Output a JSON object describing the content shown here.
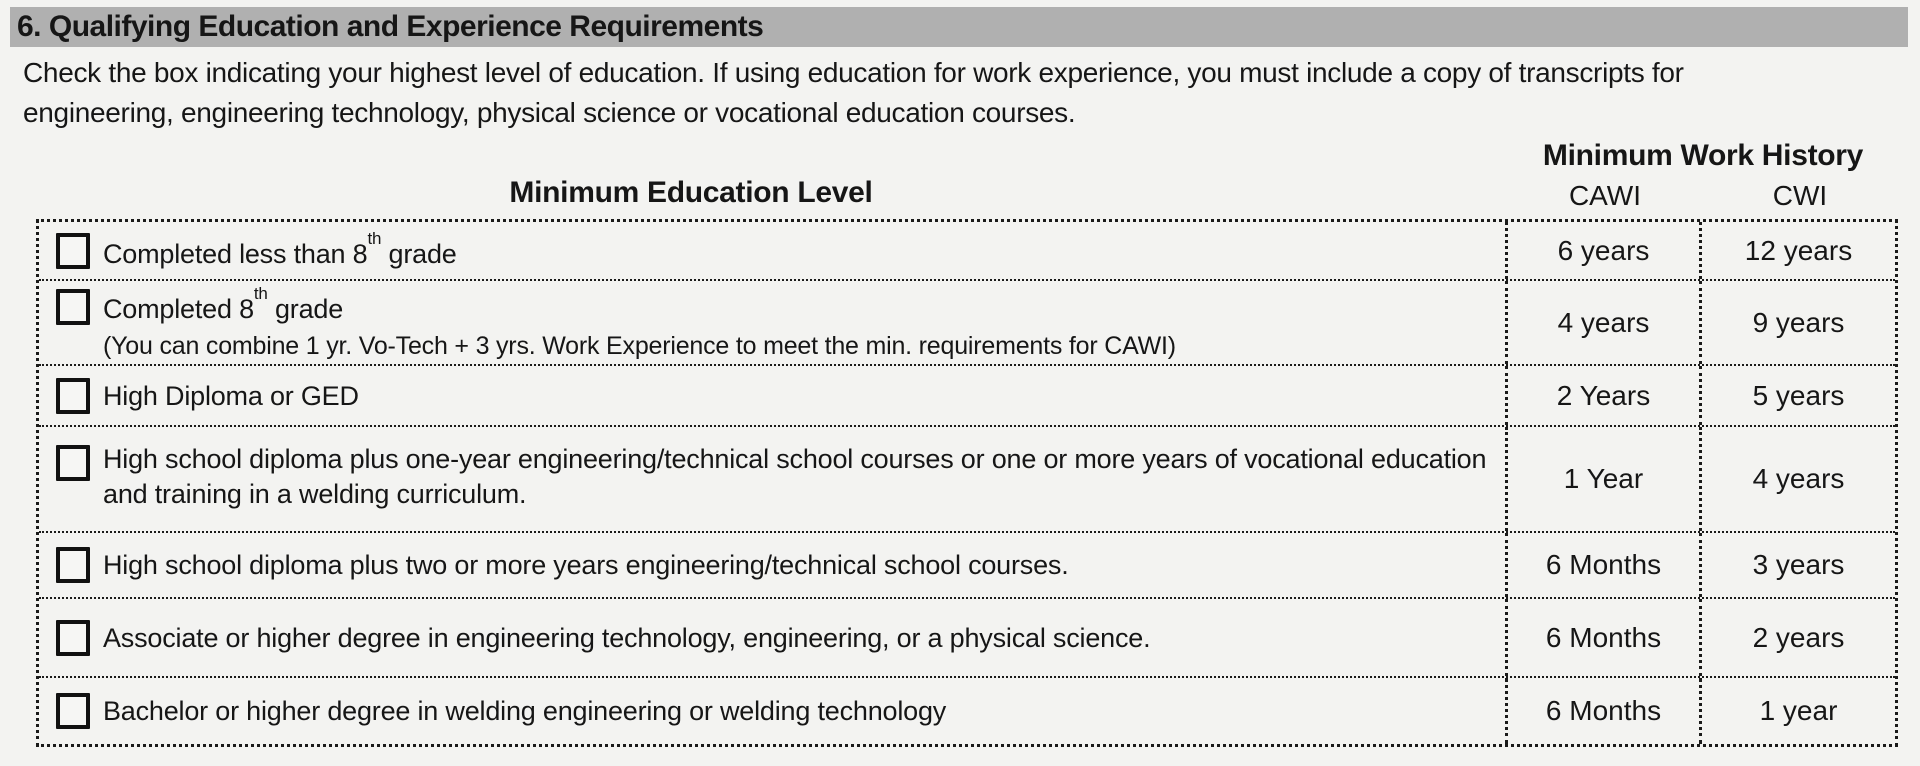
{
  "colors": {
    "page_bg": "#f3f3f1",
    "header_bar_bg": "#b0b0b0",
    "border": "#1a1a1a",
    "text": "#161616"
  },
  "section_header": {
    "title": "6. Qualifying Education and Experience Requirements"
  },
  "intro": {
    "lines": [
      "Check the box indicating your highest level of education. If using education for work experience, you must include a copy of transcripts for",
      "engineering, engineering technology, physical science or vocational education courses."
    ]
  },
  "table": {
    "work_history_header": "Minimum Work History",
    "education_header": "Minimum Education Level",
    "columns": {
      "cawi": "CAWI",
      "cwi": "CWI"
    },
    "rows": [
      {
        "label_pre": "Completed less than 8",
        "label_sup": "th",
        "label_post": " grade",
        "checked": false,
        "cawi": "6 years",
        "cwi": "12 years"
      },
      {
        "label_pre": "Completed 8",
        "label_sup": "th",
        "label_post": " grade",
        "note": "(You can combine 1 yr. Vo-Tech + 3 yrs. Work Experience to meet the min. requirements for CAWI)",
        "checked": false,
        "cawi": "4 years",
        "cwi": "9 years"
      },
      {
        "label": "High Diploma or GED",
        "checked": false,
        "cawi": "2 Years",
        "cwi": "5 years"
      },
      {
        "label": "High school diploma plus one-year engineering/technical school courses or one or more years of vocational education and training in a welding curriculum.",
        "checked": false,
        "cawi": "1 Year",
        "cwi": "4 years"
      },
      {
        "label": "High school diploma plus two or more years engineering/technical school courses.",
        "checked": false,
        "cawi": "6 Months",
        "cwi": "3 years"
      },
      {
        "label": "Associate or higher degree in engineering technology, engineering, or a physical science.",
        "checked": false,
        "cawi": "6 Months",
        "cwi": "2 years"
      },
      {
        "label": "Bachelor or higher degree in welding engineering or welding technology",
        "checked": false,
        "cawi": "6 Months",
        "cwi": "1 year"
      }
    ]
  }
}
